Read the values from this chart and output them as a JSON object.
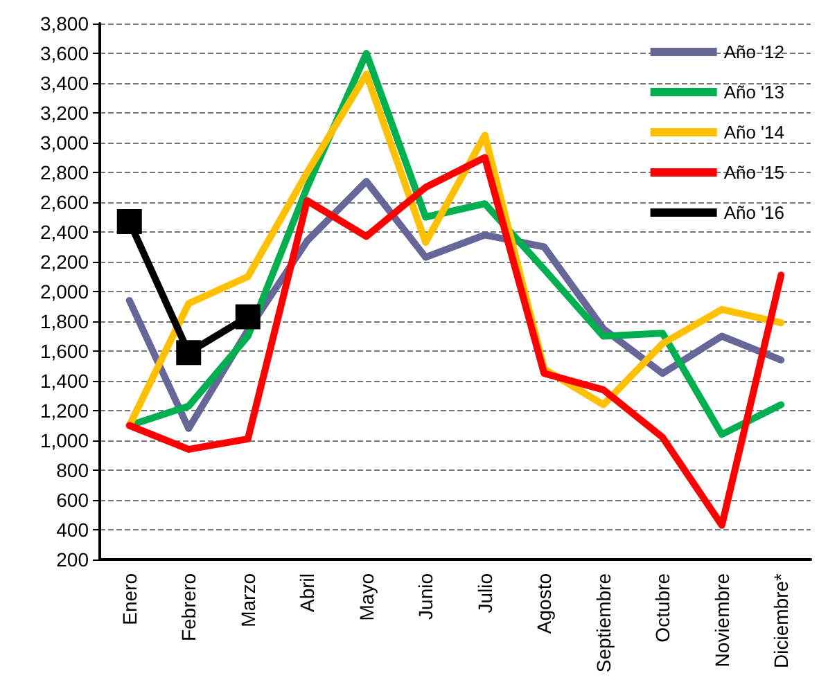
{
  "chart_data": {
    "type": "line",
    "categories": [
      "Enero",
      "Febrero",
      "Marzo",
      "Abril",
      "Mayo",
      "Junio",
      "Julio",
      "Agosto",
      "Septiembre",
      "Octubre",
      "Noviembre",
      "Diciembre*"
    ],
    "series": [
      {
        "name": "Año '12",
        "color": "#666699",
        "values": [
          1940,
          1080,
          1740,
          2340,
          2740,
          2230,
          2380,
          2300,
          1750,
          1450,
          1700,
          1540
        ]
      },
      {
        "name": "Año '13",
        "color": "#00b050",
        "values": [
          1100,
          1230,
          1700,
          2700,
          3600,
          2500,
          2590,
          2150,
          1700,
          1720,
          1040,
          1240
        ]
      },
      {
        "name": "Año '14",
        "color": "#ffc000",
        "values": [
          1100,
          1920,
          2100,
          2800,
          3460,
          2330,
          3050,
          1480,
          1240,
          1650,
          1880,
          1790
        ]
      },
      {
        "name": "Año '15",
        "color": "#ff0000",
        "values": [
          1100,
          940,
          1010,
          2610,
          2370,
          2700,
          2900,
          1450,
          1340,
          1020,
          430,
          2110
        ]
      },
      {
        "name": "Año '16",
        "color": "#000000",
        "marker": "square",
        "values": [
          2470,
          1590,
          1830,
          null,
          null,
          null,
          null,
          null,
          null,
          null,
          null,
          null
        ]
      }
    ],
    "ylim": [
      200,
      3800
    ],
    "yticks": [
      200,
      400,
      600,
      800,
      {
        "value": 1000,
        "label": "1,000"
      },
      {
        "value": 1200,
        "label": "1,200"
      },
      {
        "value": 1400,
        "label": "1,400"
      },
      {
        "value": 1600,
        "label": "1,600"
      },
      {
        "value": 1800,
        "label": "1,800"
      },
      {
        "value": 2000,
        "label": "2,000"
      },
      {
        "value": 2200,
        "label": "2,200"
      },
      {
        "value": 2400,
        "label": "2,400"
      },
      {
        "value": 2600,
        "label": "2,600"
      },
      {
        "value": 2800,
        "label": "2,800"
      },
      {
        "value": 3000,
        "label": "3,000"
      },
      {
        "value": 3200,
        "label": "3,200"
      },
      {
        "value": 3400,
        "label": "3,400"
      },
      {
        "value": 3600,
        "label": "3,600"
      },
      {
        "value": 3800,
        "label": "3,800"
      }
    ],
    "grid": "y",
    "legend": "top right",
    "marker": "none",
    "line_style": "solid"
  }
}
